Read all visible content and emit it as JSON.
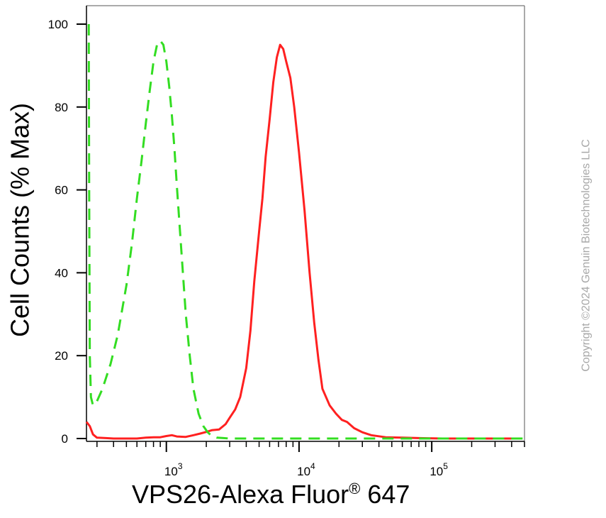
{
  "chart_data": {
    "type": "line",
    "title": "",
    "xlabel_main": "VPS26-Alexa Fluor",
    "xlabel_sup": "®",
    "xlabel_tail": " 647",
    "ylabel": "Cell Counts (% Max)",
    "x_scale": "log",
    "xlim": [
      250,
      500000
    ],
    "ylim": [
      0,
      105
    ],
    "y_ticks": [
      "0",
      "20",
      "40",
      "60",
      "80",
      "100"
    ],
    "y_tick_values": [
      0,
      20,
      40,
      60,
      80,
      100
    ],
    "x_tick_labels": [
      {
        "base": "10",
        "exp": "3",
        "value": 1000
      },
      {
        "base": "10",
        "exp": "4",
        "value": 10000
      },
      {
        "base": "10",
        "exp": "5",
        "value": 100000
      }
    ],
    "series": [
      {
        "color": "#ff2020",
        "dash": "solid",
        "x": [
          250,
          265,
          280,
          300,
          350,
          400,
          500,
          600,
          700,
          800,
          900,
          1000,
          1100,
          1200,
          1400,
          1600,
          1800,
          2000,
          2200,
          2500,
          2800,
          3000,
          3300,
          3600,
          4000,
          4300,
          4600,
          5000,
          5300,
          5600,
          6000,
          6400,
          6800,
          7200,
          7600,
          8000,
          8600,
          9200,
          10000,
          11000,
          12000,
          13000,
          14000,
          15000,
          17000,
          19000,
          21000,
          23000,
          26000,
          30000,
          35000,
          45000,
          60000,
          80000,
          120000,
          200000,
          300000,
          450000
        ],
        "y": [
          4,
          3,
          1,
          0.2,
          0.1,
          0,
          0,
          0,
          0.2,
          0.3,
          0.3,
          0.6,
          0.8,
          0.5,
          0.4,
          0.8,
          1.2,
          1.6,
          2,
          2.2,
          3.5,
          5,
          7,
          10,
          17,
          26,
          38,
          50,
          58,
          68,
          77,
          86,
          92,
          95,
          94,
          91,
          87,
          80,
          69,
          55,
          40,
          28,
          19,
          12,
          8,
          6,
          4.5,
          4,
          2.5,
          1.5,
          0.8,
          0.3,
          0.2,
          0.1,
          0,
          0,
          0,
          0
        ]
      },
      {
        "color": "#33dd22",
        "dash": "dashed",
        "x": [
          260,
          262,
          265,
          270,
          280,
          300,
          330,
          380,
          430,
          500,
          550,
          600,
          650,
          700,
          750,
          800,
          850,
          900,
          950,
          1000,
          1050,
          1100,
          1150,
          1200,
          1300,
          1400,
          1500,
          1600,
          1750,
          1900,
          2050,
          2200,
          2400,
          2700,
          3000,
          3500,
          4000,
          5000,
          7000,
          10000,
          20000,
          50000,
          100000,
          200000,
          500000
        ],
        "y": [
          100,
          60,
          20,
          10,
          8,
          9,
          12,
          18,
          25,
          37,
          47,
          58,
          67,
          76,
          84,
          91,
          95,
          96,
          95,
          91,
          85,
          78,
          70,
          61,
          45,
          30,
          20,
          12,
          6,
          3,
          1.5,
          0.6,
          0.2,
          0.1,
          0,
          0,
          0,
          0,
          0,
          0,
          0,
          0,
          0,
          0,
          0
        ]
      }
    ],
    "grid": false,
    "legend": "none"
  },
  "watermark": "Copyright ©2024 Genuin Biotechnologies LLC"
}
